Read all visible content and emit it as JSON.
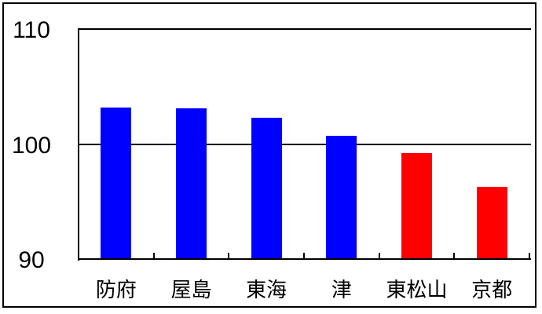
{
  "chart_data": {
    "type": "bar",
    "categories": [
      "防府",
      "屋島",
      "東海",
      "津",
      "東松山",
      "京都"
    ],
    "values": [
      103.2,
      103.1,
      102.3,
      100.7,
      99.2,
      96.3
    ],
    "bar_colors": [
      "#0000ff",
      "#0000ff",
      "#0000ff",
      "#0000ff",
      "#ff0000",
      "#ff0000"
    ],
    "title": "",
    "xlabel": "",
    "ylabel": "",
    "ylim": [
      90,
      110
    ],
    "yticks": [
      "110",
      "100",
      "90"
    ],
    "ytick_values": [
      110,
      100,
      90
    ],
    "gridline_values": [
      100
    ],
    "grid": "horizontal line at 100 only",
    "legend_position": "none"
  },
  "colors": {
    "bar_blue": "#0000ff",
    "bar_red": "#ff0000",
    "axis": "#000000",
    "background": "#ffffff"
  }
}
